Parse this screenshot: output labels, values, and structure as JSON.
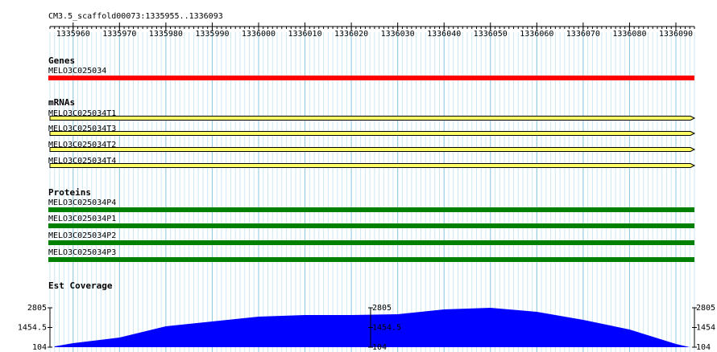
{
  "header": {
    "title": "CM3.5_scaffold00073:1335955..1336093"
  },
  "ruler": {
    "range": [
      1335955,
      1336094
    ],
    "ticks": [
      1335960,
      1335970,
      1335980,
      1335990,
      1336000,
      1336010,
      1336020,
      1336030,
      1336040,
      1336050,
      1336060,
      1336070,
      1336080,
      1336090
    ]
  },
  "tracks": [
    {
      "title": "Genes",
      "color": "#ff0000",
      "style": "box",
      "features": [
        "MELO3C025034"
      ]
    },
    {
      "title": "mRNAs",
      "color": "#ffff66",
      "style": "arrow",
      "features": [
        "MELO3C025034T1",
        "MELO3C025034T3",
        "MELO3C025034T2",
        "MELO3C025034T4"
      ]
    },
    {
      "title": "Proteins",
      "color": "#008000",
      "style": "box",
      "features": [
        "MELO3C025034P4",
        "MELO3C025034P1",
        "MELO3C025034P2",
        "MELO3C025034P3"
      ]
    }
  ],
  "coverage": {
    "title": "Est Coverage",
    "color": "#0000ff",
    "positions": [
      1335956,
      1335960,
      1335970,
      1335980,
      1335990,
      1336000,
      1336010,
      1336020,
      1336030,
      1336040,
      1336050,
      1336060,
      1336070,
      1336080,
      1336090,
      1336093
    ],
    "values": [
      159,
      380,
      765,
      1537,
      1868,
      2199,
      2309,
      2309,
      2364,
      2695,
      2805,
      2529,
      1978,
      1317,
      324,
      104
    ],
    "ylim": [
      104,
      2805
    ],
    "yticks": [
      104,
      1454.5,
      2805
    ]
  }
}
